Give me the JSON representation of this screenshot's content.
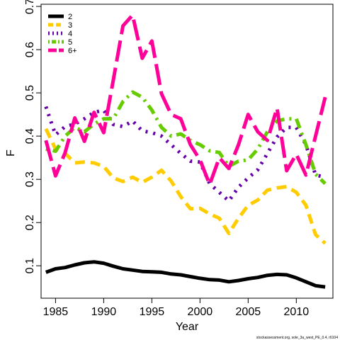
{
  "chart_data": {
    "type": "line",
    "title": "",
    "xlabel": "Year",
    "ylabel": "F",
    "xlim": [
      1983.5,
      2013.8
    ],
    "ylim": [
      0.025,
      0.705
    ],
    "xticks": [
      1985,
      1990,
      1995,
      2000,
      2005,
      2010
    ],
    "yticks": [
      0.1,
      0.2,
      0.3,
      0.4,
      0.5,
      0.6,
      0.7
    ],
    "grid": false,
    "legend_position": "top-left",
    "footer": "stockassessment.org, sole_3a_west_PE_0.4, r6104",
    "x": [
      1984,
      1985,
      1986,
      1987,
      1988,
      1989,
      1990,
      1991,
      1992,
      1993,
      1994,
      1995,
      1996,
      1997,
      1998,
      1999,
      2000,
      2001,
      2002,
      2003,
      2004,
      2005,
      2006,
      2007,
      2008,
      2009,
      2010,
      2011,
      2012,
      2013
    ],
    "series": [
      {
        "name": "2",
        "color": "#000000",
        "dash": "solid",
        "values": [
          0.085,
          0.093,
          0.096,
          0.102,
          0.107,
          0.109,
          0.106,
          0.099,
          0.093,
          0.09,
          0.087,
          0.086,
          0.085,
          0.081,
          0.079,
          0.075,
          0.071,
          0.068,
          0.067,
          0.063,
          0.066,
          0.07,
          0.073,
          0.078,
          0.08,
          0.079,
          0.072,
          0.063,
          0.054,
          0.051
        ]
      },
      {
        "name": "3",
        "color": "#FFCC00",
        "dash": "dashed",
        "values": [
          0.417,
          0.37,
          0.36,
          0.338,
          0.34,
          0.338,
          0.33,
          0.303,
          0.295,
          0.305,
          0.293,
          0.305,
          0.321,
          0.296,
          0.26,
          0.232,
          0.233,
          0.22,
          0.21,
          0.175,
          0.21,
          0.24,
          0.252,
          0.275,
          0.28,
          0.283,
          0.27,
          0.24,
          0.172,
          0.152
        ]
      },
      {
        "name": "4",
        "color": "#6600AA",
        "dash": "dotted",
        "values": [
          0.468,
          0.403,
          0.422,
          0.428,
          0.44,
          0.455,
          0.46,
          0.427,
          0.422,
          0.435,
          0.412,
          0.408,
          0.4,
          0.38,
          0.36,
          0.342,
          0.34,
          0.29,
          0.27,
          0.25,
          0.282,
          0.303,
          0.322,
          0.36,
          0.398,
          0.42,
          0.42,
          0.38,
          0.31,
          0.305
        ]
      },
      {
        "name": "5",
        "color": "#66CC00",
        "dash": "dotdash",
        "values": [
          0.37,
          0.365,
          0.4,
          0.42,
          0.41,
          0.428,
          0.44,
          0.44,
          0.48,
          0.502,
          0.49,
          0.46,
          0.42,
          0.4,
          0.405,
          0.39,
          0.38,
          0.366,
          0.362,
          0.33,
          0.342,
          0.345,
          0.37,
          0.41,
          0.435,
          0.44,
          0.44,
          0.38,
          0.312,
          0.29
        ]
      },
      {
        "name": "6+",
        "color": "#FF0099",
        "dash": "longdash",
        "values": [
          0.39,
          0.308,
          0.362,
          0.442,
          0.388,
          0.455,
          0.408,
          0.53,
          0.655,
          0.68,
          0.58,
          0.62,
          0.498,
          0.45,
          0.44,
          0.38,
          0.345,
          0.288,
          0.35,
          0.325,
          0.38,
          0.45,
          0.41,
          0.39,
          0.465,
          0.32,
          0.358,
          0.31,
          0.4,
          0.49
        ]
      }
    ]
  }
}
